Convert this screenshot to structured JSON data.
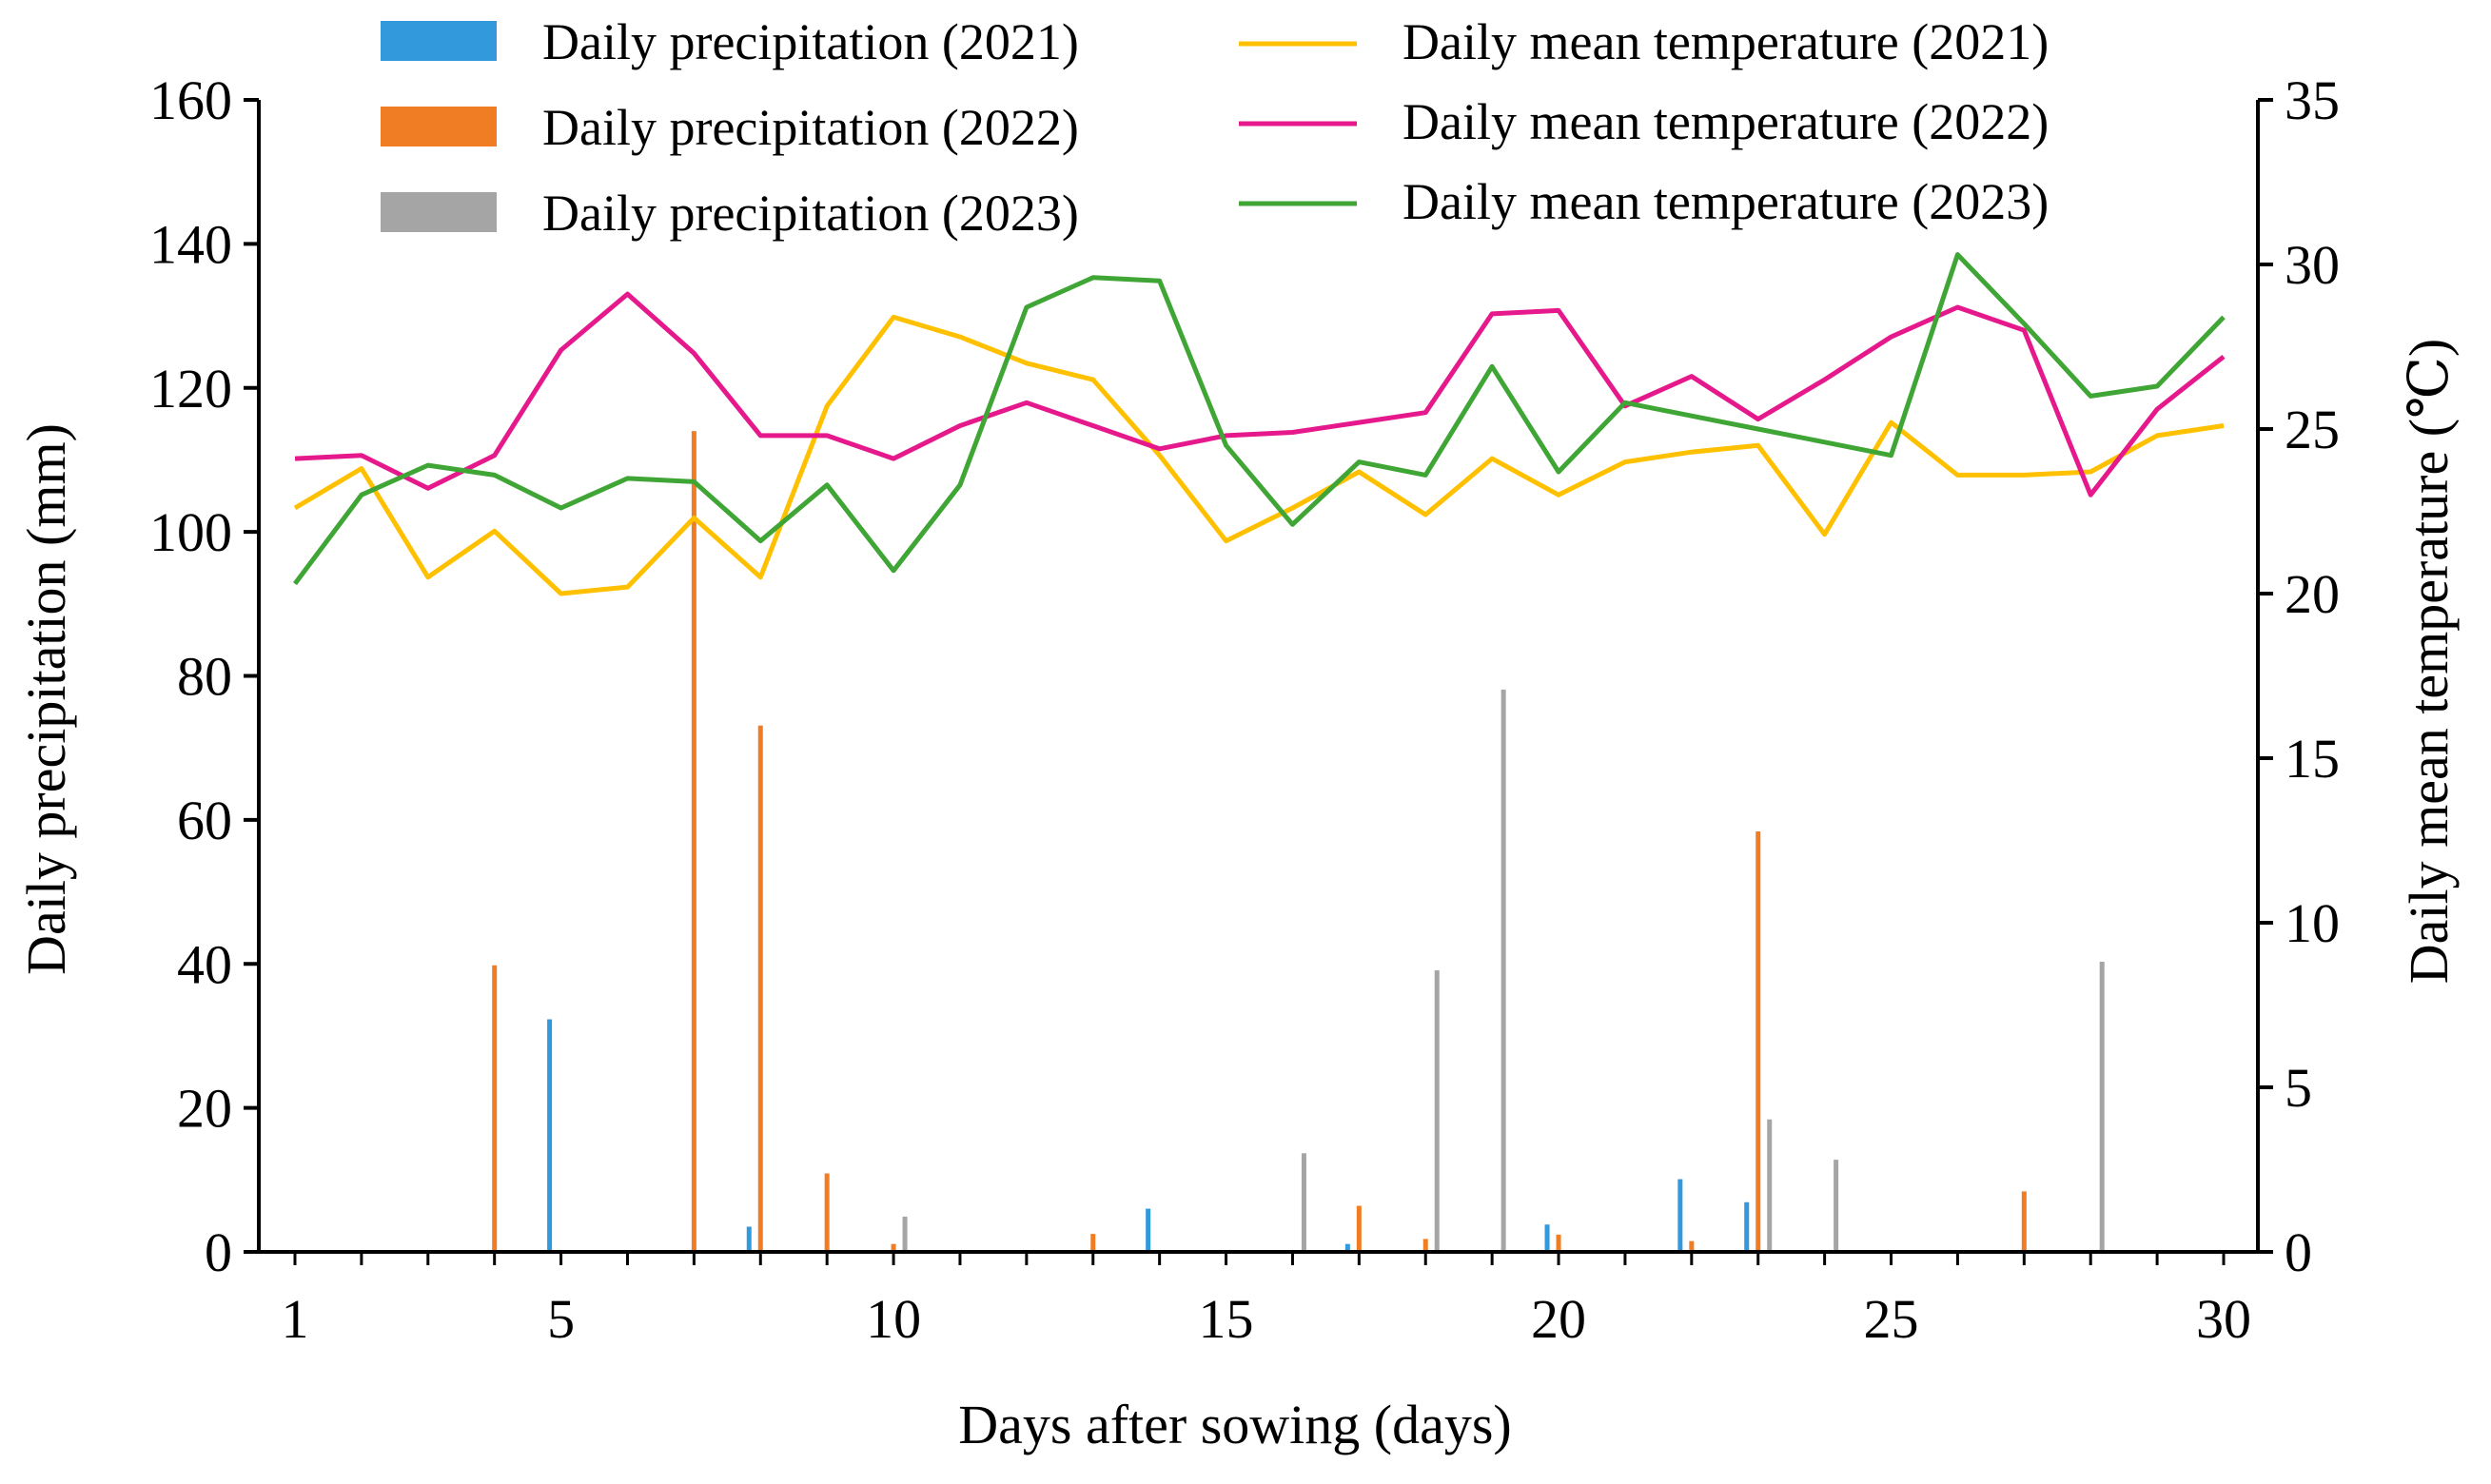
{
  "chart_data": {
    "type": "bar+line",
    "title": "",
    "xlabel": "Days  after  sowing (days)",
    "ylabel_left": "Daily precipitation (mm)",
    "ylabel_right": "Daily mean temperature (℃)",
    "xlim": [
      1,
      30
    ],
    "x_ticks": [
      1,
      5,
      10,
      15,
      20,
      25,
      30
    ],
    "ylim_left": [
      0,
      160
    ],
    "y_ticks_left": [
      0,
      20,
      40,
      60,
      80,
      100,
      120,
      140,
      160
    ],
    "ylim_right": [
      0,
      35
    ],
    "y_ticks_right": [
      0,
      5,
      10,
      15,
      20,
      25,
      30,
      35
    ],
    "grid": false,
    "legend_position": "top",
    "days": [
      1,
      2,
      3,
      4,
      5,
      6,
      7,
      8,
      9,
      10,
      11,
      12,
      13,
      14,
      15,
      16,
      17,
      18,
      19,
      20,
      21,
      22,
      23,
      24,
      25,
      26,
      27,
      28,
      29,
      30
    ],
    "precipitation_series": [
      {
        "name": "Daily precipitation (2021)",
        "color": "#3399dd",
        "values": [
          0,
          0,
          0,
          0,
          32.3,
          0,
          0,
          3.5,
          0,
          0,
          0,
          0,
          0,
          6,
          0,
          0,
          1.1,
          0,
          0,
          3.8,
          0,
          10.1,
          6.9,
          0,
          0,
          0,
          0,
          0,
          0,
          0
        ]
      },
      {
        "name": "Daily precipitation (2022)",
        "color": "#f07d23",
        "values": [
          0,
          0,
          0,
          39.8,
          0,
          0,
          114,
          73.1,
          10.9,
          1.1,
          0,
          0,
          2.5,
          0,
          0,
          0,
          6.4,
          1.8,
          0,
          2.4,
          0,
          1.5,
          58.4,
          0,
          0,
          0,
          8.4,
          0,
          0,
          0
        ]
      },
      {
        "name": "Daily precipitation (2023)",
        "color": "#a5a5a5",
        "values": [
          0,
          0,
          0,
          0,
          0,
          0,
          0,
          0,
          0,
          4.9,
          0,
          0,
          0,
          0,
          0,
          13.7,
          0,
          39.1,
          78.1,
          0,
          0,
          0,
          18.4,
          12.8,
          0,
          0,
          0,
          40.3,
          0,
          0
        ]
      }
    ],
    "temperature_series": [
      {
        "name": "Daily mean  temperature (2021)",
        "color": "#ffc000",
        "values": [
          22.6,
          23.8,
          20.5,
          21.9,
          20,
          20.2,
          22.3,
          20.5,
          25.7,
          28.4,
          27.8,
          27,
          26.5,
          24.2,
          21.6,
          22.6,
          23.7,
          22.4,
          24.1,
          23,
          24,
          24.3,
          24.5,
          21.8,
          25.2,
          23.6,
          23.6,
          23.7,
          24.8,
          25.1
        ]
      },
      {
        "name": "Daily mean  temperature (2022)",
        "color": "#e6198c",
        "values": [
          24.1,
          24.2,
          23.2,
          24.2,
          27.4,
          29.1,
          27.3,
          24.8,
          24.8,
          24.1,
          25.1,
          25.8,
          25.1,
          24.4,
          24.8,
          24.9,
          25.2,
          25.5,
          28.5,
          28.6,
          25.7,
          26.6,
          25.3,
          26.5,
          27.8,
          28.7,
          28,
          23,
          25.6,
          27.2
        ]
      },
      {
        "name": "Daily mean  temperature (2023)",
        "color": "#3fa535",
        "values": [
          20.3,
          23,
          23.9,
          23.6,
          22.6,
          23.5,
          23.4,
          21.6,
          23.3,
          20.7,
          23.3,
          28.7,
          29.6,
          29.5,
          24.5,
          22.1,
          24,
          23.6,
          26.9,
          23.7,
          25.8,
          25.4,
          25,
          24.6,
          24.2,
          30.3,
          28.2,
          26,
          26.3,
          28.4
        ]
      }
    ]
  }
}
